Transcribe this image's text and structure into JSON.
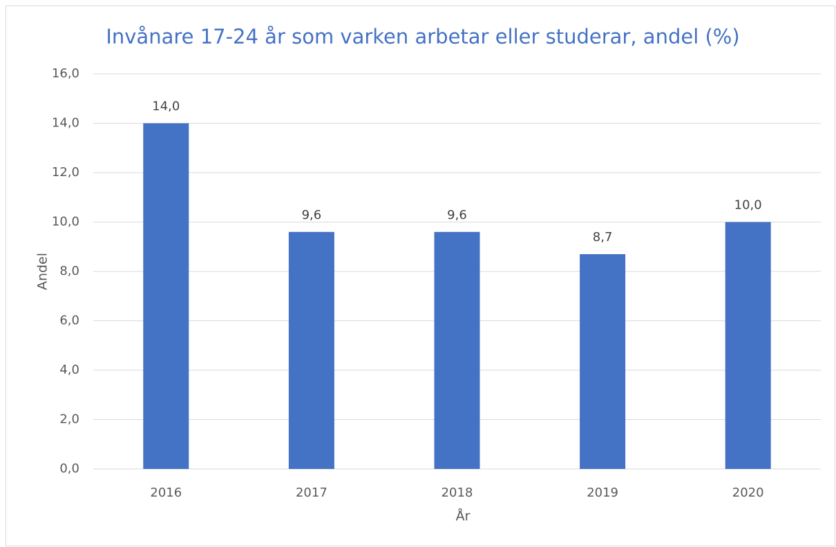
{
  "chart_data": {
    "type": "bar",
    "title": "Invånare 17-24 år som varken arbetar eller studerar, andel (%)",
    "x_label": "År",
    "y_label": "Andel",
    "categories": [
      "2016",
      "2017",
      "2018",
      "2019",
      "2020"
    ],
    "values": [
      14.0,
      9.6,
      9.6,
      8.7,
      10.0
    ],
    "value_labels": [
      "14,0",
      "9,6",
      "9,6",
      "8,7",
      "10,0"
    ],
    "color": "#4472c4",
    "ylim": [
      0,
      16
    ],
    "yticks": [
      {
        "value": 0,
        "label": "0,0"
      },
      {
        "value": 2,
        "label": "2,0"
      },
      {
        "value": 4,
        "label": "4,0"
      },
      {
        "value": 6,
        "label": "6,0"
      },
      {
        "value": 8,
        "label": "8,0"
      },
      {
        "value": 10,
        "label": "10,0"
      },
      {
        "value": 12,
        "label": "12,0"
      },
      {
        "value": 14,
        "label": "14,0"
      },
      {
        "value": 16,
        "label": "16,0"
      }
    ],
    "grid": true
  }
}
